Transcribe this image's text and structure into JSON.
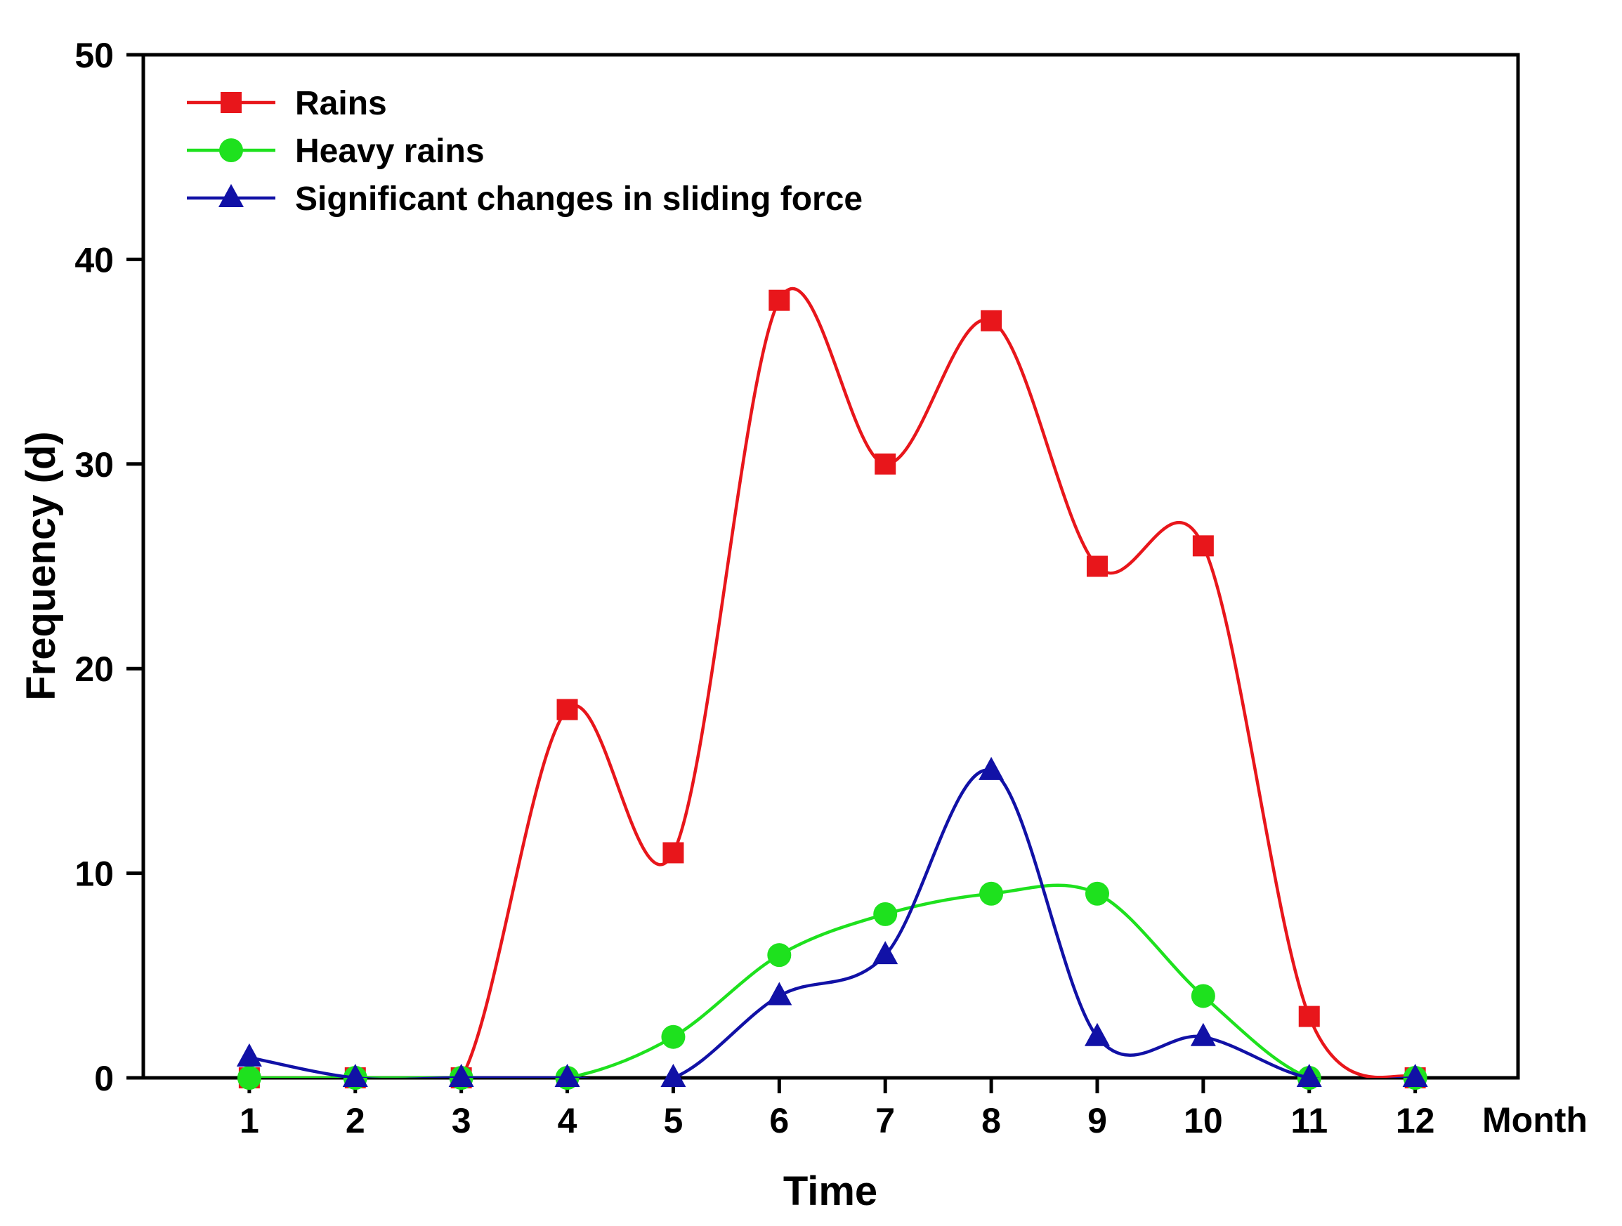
{
  "chart_data": {
    "type": "line",
    "title": "",
    "xlabel": "Time",
    "ylabel": "Frequency (d)",
    "x_unit_label": "Month",
    "x": [
      1,
      2,
      3,
      4,
      5,
      6,
      7,
      8,
      9,
      10,
      11,
      12
    ],
    "xlim": [
      0,
      12.97
    ],
    "ylim": [
      0,
      50
    ],
    "xticks": [
      "1",
      "2",
      "3",
      "4",
      "5",
      "6",
      "7",
      "8",
      "9",
      "10",
      "11",
      "12"
    ],
    "yticks": [
      "0",
      "10",
      "20",
      "30",
      "40",
      "50"
    ],
    "smooth": true,
    "grid": false,
    "legend_position": "top-left",
    "series": [
      {
        "name": "Rains",
        "color": "#e8161b",
        "marker": "square",
        "values": [
          0,
          0,
          0,
          18,
          11,
          38,
          30,
          37,
          25,
          26,
          3,
          0
        ]
      },
      {
        "name": "Heavy rains",
        "color": "#1ee11e",
        "marker": "circle",
        "values": [
          0,
          0,
          0,
          0,
          2,
          6,
          8,
          9,
          9,
          4,
          0,
          0
        ]
      },
      {
        "name": "Significant changes in sliding force",
        "color": "#1111a6",
        "marker": "triangle",
        "values": [
          1,
          0,
          0,
          0,
          0,
          4,
          6,
          15,
          2,
          2,
          0,
          0
        ]
      }
    ]
  }
}
